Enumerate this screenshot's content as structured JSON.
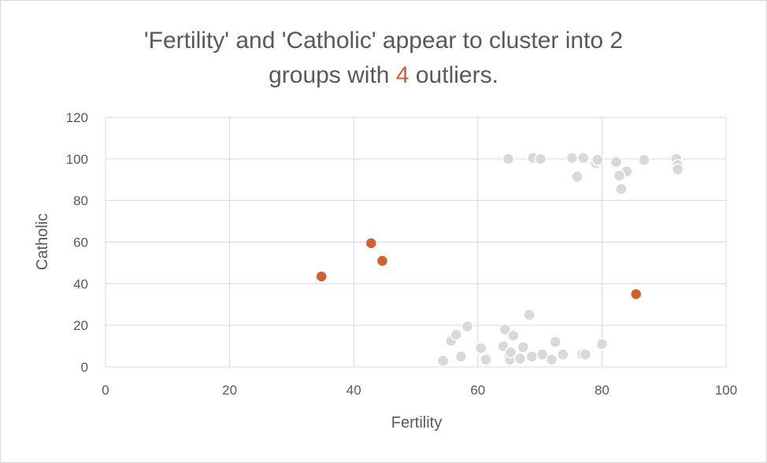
{
  "chart_data": {
    "type": "scatter",
    "title": {
      "line1": "'Fertility' and 'Catholic' appear to cluster into 2",
      "line2_before": "groups with",
      "line2_highlight": "4",
      "line2_after": "outliers."
    },
    "xlabel": "Fertility",
    "ylabel": "Catholic",
    "xlim": [
      0,
      100
    ],
    "ylim": [
      0,
      120
    ],
    "x_ticks": [
      0,
      20,
      40,
      60,
      80,
      100
    ],
    "y_ticks": [
      0,
      20,
      40,
      60,
      80,
      100,
      120
    ],
    "grid": true,
    "legend": "none",
    "series": [
      {
        "color": "#d9d9d9",
        "points": [
          [
            64.9,
            100
          ],
          [
            68.9,
            100.5
          ],
          [
            70.1,
            100
          ],
          [
            75.2,
            100.5
          ],
          [
            77.0,
            100.5
          ],
          [
            79.0,
            98
          ],
          [
            79.3,
            99.5
          ],
          [
            82.3,
            98.5
          ],
          [
            84.0,
            94
          ],
          [
            86.8,
            99.5
          ],
          [
            92.0,
            100
          ],
          [
            92.2,
            97
          ],
          [
            92.2,
            95
          ],
          [
            76.0,
            91.5
          ],
          [
            82.8,
            92
          ],
          [
            83.1,
            85.5
          ],
          [
            54.4,
            3
          ],
          [
            55.7,
            12.5
          ],
          [
            56.5,
            15.5
          ],
          [
            57.3,
            5
          ],
          [
            58.3,
            19.5
          ],
          [
            60.5,
            9
          ],
          [
            61.3,
            3.5
          ],
          [
            64.1,
            10
          ],
          [
            64.4,
            18
          ],
          [
            65.0,
            5
          ],
          [
            65.2,
            3.5
          ],
          [
            65.3,
            7
          ],
          [
            65.7,
            15
          ],
          [
            66.8,
            4
          ],
          [
            67.3,
            9.5
          ],
          [
            68.3,
            25
          ],
          [
            68.7,
            5
          ],
          [
            70.4,
            6
          ],
          [
            71.9,
            3.5
          ],
          [
            72.5,
            12
          ],
          [
            73.7,
            6
          ],
          [
            76.8,
            6
          ],
          [
            77.3,
            6
          ],
          [
            80.0,
            11
          ]
        ]
      },
      {
        "color": "#d0622f",
        "points": [
          [
            42.8,
            59.5
          ],
          [
            44.6,
            51
          ],
          [
            34.8,
            43.5
          ],
          [
            85.5,
            35
          ]
        ]
      }
    ]
  }
}
